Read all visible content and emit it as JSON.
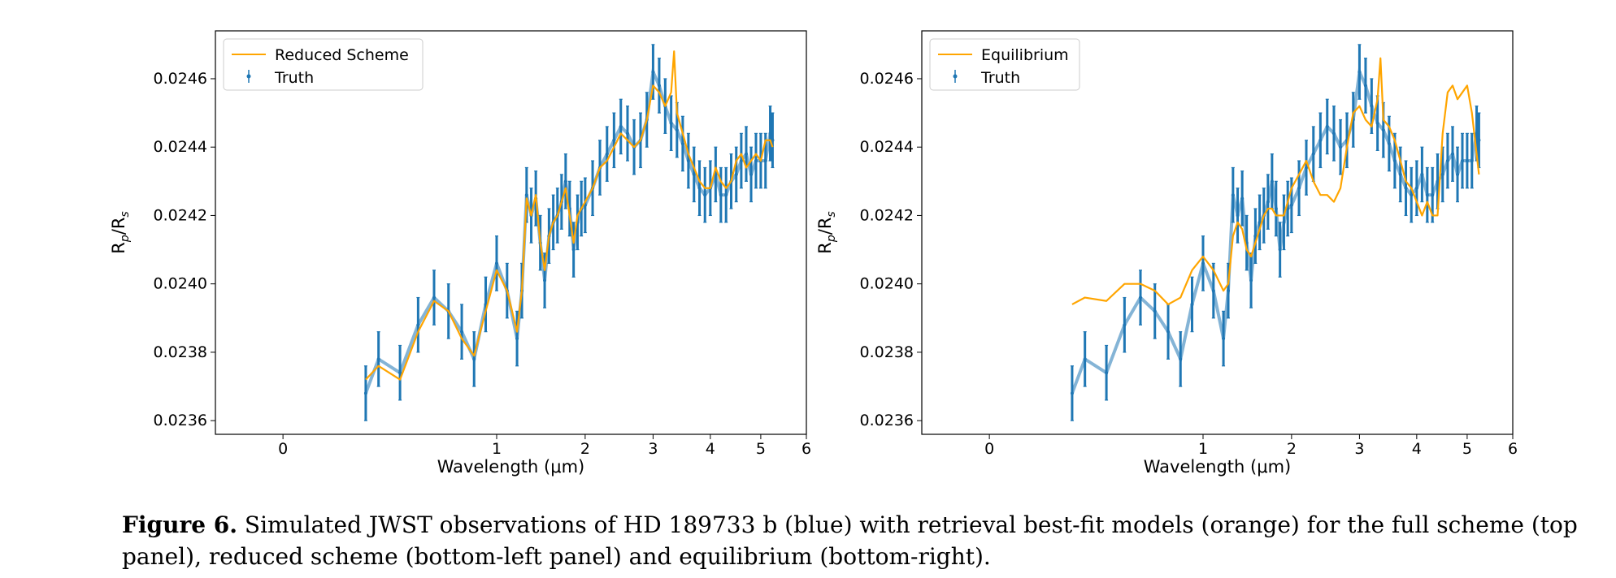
{
  "chart_data": [
    {
      "type": "line",
      "title": "",
      "xlabel": "Wavelength (μm)",
      "ylabel": "R_p/R_s",
      "xlim": [
        -0.1,
        6
      ],
      "ylim": [
        0.02356,
        0.02474
      ],
      "xticks": [
        0,
        1,
        2,
        3,
        4,
        5,
        6
      ],
      "yticks": [
        0.0236,
        0.0238,
        0.024,
        0.0242,
        0.0244,
        0.0246
      ],
      "xtick_labels": [
        "0",
        "1",
        "2",
        "3",
        "4",
        "5",
        "6"
      ],
      "ytick_labels": [
        "0.0236",
        "0.0238",
        "0.0240",
        "0.0242",
        "0.0244",
        "0.0246"
      ],
      "x_scale": "sqrt",
      "grid": false,
      "legend": "top-left",
      "series": [
        {
          "name": "Truth",
          "kind": "errorbar",
          "color": "#1f77b4",
          "x": [
            0.15,
            0.2,
            0.3,
            0.4,
            0.5,
            0.6,
            0.7,
            0.8,
            0.9,
            1.0,
            1.1,
            1.2,
            1.25,
            1.3,
            1.35,
            1.4,
            1.45,
            1.5,
            1.55,
            1.6,
            1.65,
            1.7,
            1.75,
            1.8,
            1.85,
            1.9,
            1.95,
            2.0,
            2.1,
            2.2,
            2.3,
            2.4,
            2.5,
            2.6,
            2.7,
            2.8,
            2.9,
            3.0,
            3.1,
            3.2,
            3.3,
            3.4,
            3.5,
            3.6,
            3.7,
            3.8,
            3.9,
            4.0,
            4.1,
            4.2,
            4.3,
            4.4,
            4.5,
            4.6,
            4.7,
            4.8,
            4.9,
            5.0,
            5.1,
            5.2,
            5.25
          ],
          "y": [
            0.02368,
            0.02378,
            0.02374,
            0.02388,
            0.02396,
            0.02392,
            0.02386,
            0.02378,
            0.02394,
            0.02406,
            0.02398,
            0.02384,
            0.02398,
            0.02426,
            0.0242,
            0.02425,
            0.02412,
            0.02401,
            0.02414,
            0.02418,
            0.0242,
            0.02424,
            0.0243,
            0.02422,
            0.0241,
            0.02418,
            0.02422,
            0.02423,
            0.02428,
            0.02434,
            0.02438,
            0.02442,
            0.02446,
            0.02444,
            0.0244,
            0.02442,
            0.02448,
            0.02462,
            0.02458,
            0.02452,
            0.02447,
            0.02445,
            0.02441,
            0.02436,
            0.02432,
            0.02428,
            0.02426,
            0.02428,
            0.02432,
            0.02426,
            0.02426,
            0.0243,
            0.02432,
            0.02436,
            0.02438,
            0.02432,
            0.02436,
            0.02436,
            0.02436,
            0.02444,
            0.02442
          ],
          "error": 8e-05
        },
        {
          "name": "Reduced Scheme",
          "kind": "line",
          "color": "#ffa500",
          "x": [
            0.15,
            0.2,
            0.3,
            0.4,
            0.5,
            0.6,
            0.7,
            0.8,
            0.9,
            1.0,
            1.1,
            1.2,
            1.25,
            1.3,
            1.35,
            1.4,
            1.45,
            1.5,
            1.55,
            1.6,
            1.65,
            1.7,
            1.75,
            1.8,
            1.85,
            1.9,
            1.95,
            2.0,
            2.1,
            2.2,
            2.3,
            2.4,
            2.5,
            2.6,
            2.7,
            2.8,
            2.9,
            3.0,
            3.1,
            3.2,
            3.3,
            3.35,
            3.4,
            3.5,
            3.6,
            3.7,
            3.8,
            3.9,
            4.0,
            4.1,
            4.2,
            4.3,
            4.4,
            4.5,
            4.6,
            4.7,
            4.8,
            4.9,
            5.0,
            5.1,
            5.2,
            5.25
          ],
          "y": [
            0.02372,
            0.02376,
            0.02372,
            0.02386,
            0.02395,
            0.02392,
            0.02384,
            0.02379,
            0.02392,
            0.02404,
            0.02398,
            0.02386,
            0.02398,
            0.02425,
            0.0242,
            0.02426,
            0.02412,
            0.02404,
            0.02414,
            0.02418,
            0.0242,
            0.02424,
            0.02428,
            0.0242,
            0.02412,
            0.0242,
            0.02422,
            0.02424,
            0.02428,
            0.02434,
            0.02436,
            0.0244,
            0.02444,
            0.02442,
            0.0244,
            0.02442,
            0.02448,
            0.02458,
            0.02456,
            0.02452,
            0.02456,
            0.02468,
            0.0245,
            0.02444,
            0.02438,
            0.02434,
            0.0243,
            0.02428,
            0.02428,
            0.02434,
            0.0243,
            0.02428,
            0.0243,
            0.02436,
            0.02438,
            0.02434,
            0.02436,
            0.02438,
            0.02436,
            0.02442,
            0.02442,
            0.0244
          ]
        }
      ]
    },
    {
      "type": "line",
      "title": "",
      "xlabel": "Wavelength (μm)",
      "ylabel": "R_p/R_s",
      "xlim": [
        -0.1,
        6
      ],
      "ylim": [
        0.02356,
        0.02474
      ],
      "xticks": [
        0,
        1,
        2,
        3,
        4,
        5,
        6
      ],
      "yticks": [
        0.0236,
        0.0238,
        0.024,
        0.0242,
        0.0244,
        0.0246
      ],
      "xtick_labels": [
        "0",
        "1",
        "2",
        "3",
        "4",
        "5",
        "6"
      ],
      "ytick_labels": [
        "0.0236",
        "0.0238",
        "0.0240",
        "0.0242",
        "0.0244",
        "0.0246"
      ],
      "x_scale": "sqrt",
      "grid": false,
      "legend": "top-left",
      "series": [
        {
          "name": "Truth",
          "kind": "errorbar",
          "color": "#1f77b4",
          "x": [
            0.15,
            0.2,
            0.3,
            0.4,
            0.5,
            0.6,
            0.7,
            0.8,
            0.9,
            1.0,
            1.1,
            1.2,
            1.25,
            1.3,
            1.35,
            1.4,
            1.45,
            1.5,
            1.55,
            1.6,
            1.65,
            1.7,
            1.75,
            1.8,
            1.85,
            1.9,
            1.95,
            2.0,
            2.1,
            2.2,
            2.3,
            2.4,
            2.5,
            2.6,
            2.7,
            2.8,
            2.9,
            3.0,
            3.1,
            3.2,
            3.3,
            3.4,
            3.5,
            3.6,
            3.7,
            3.8,
            3.9,
            4.0,
            4.1,
            4.2,
            4.3,
            4.4,
            4.5,
            4.6,
            4.7,
            4.8,
            4.9,
            5.0,
            5.1,
            5.2,
            5.25
          ],
          "y": [
            0.02368,
            0.02378,
            0.02374,
            0.02388,
            0.02396,
            0.02392,
            0.02386,
            0.02378,
            0.02394,
            0.02406,
            0.02398,
            0.02384,
            0.02398,
            0.02426,
            0.0242,
            0.02425,
            0.02412,
            0.02401,
            0.02414,
            0.02418,
            0.0242,
            0.02424,
            0.0243,
            0.02422,
            0.0241,
            0.02418,
            0.02422,
            0.02423,
            0.02428,
            0.02434,
            0.02438,
            0.02442,
            0.02446,
            0.02444,
            0.0244,
            0.02442,
            0.02448,
            0.02462,
            0.02458,
            0.02452,
            0.02447,
            0.02445,
            0.02441,
            0.02436,
            0.02432,
            0.02428,
            0.02426,
            0.02428,
            0.02432,
            0.02426,
            0.02426,
            0.0243,
            0.02432,
            0.02436,
            0.02438,
            0.02432,
            0.02436,
            0.02436,
            0.02436,
            0.02444,
            0.02442
          ],
          "error": 8e-05
        },
        {
          "name": "Equilibrium",
          "kind": "line",
          "color": "#ffa500",
          "x": [
            0.15,
            0.2,
            0.3,
            0.4,
            0.5,
            0.6,
            0.7,
            0.8,
            0.9,
            1.0,
            1.1,
            1.2,
            1.25,
            1.3,
            1.35,
            1.4,
            1.45,
            1.5,
            1.55,
            1.6,
            1.65,
            1.7,
            1.75,
            1.8,
            1.85,
            1.9,
            1.95,
            2.0,
            2.1,
            2.2,
            2.3,
            2.4,
            2.5,
            2.6,
            2.7,
            2.8,
            2.9,
            3.0,
            3.1,
            3.2,
            3.3,
            3.35,
            3.4,
            3.5,
            3.6,
            3.7,
            3.8,
            3.9,
            4.0,
            4.1,
            4.2,
            4.3,
            4.4,
            4.5,
            4.6,
            4.7,
            4.8,
            4.9,
            5.0,
            5.1,
            5.2,
            5.25
          ],
          "y": [
            0.02394,
            0.02396,
            0.02395,
            0.024,
            0.024,
            0.02398,
            0.02394,
            0.02396,
            0.02404,
            0.02408,
            0.02404,
            0.02398,
            0.024,
            0.02414,
            0.02418,
            0.02416,
            0.0241,
            0.02408,
            0.02412,
            0.02416,
            0.0242,
            0.02422,
            0.02422,
            0.0242,
            0.0242,
            0.0242,
            0.02424,
            0.02428,
            0.02432,
            0.02436,
            0.0243,
            0.02426,
            0.02426,
            0.02424,
            0.02428,
            0.0244,
            0.0245,
            0.02452,
            0.02448,
            0.02446,
            0.02454,
            0.02466,
            0.02448,
            0.02446,
            0.02442,
            0.02436,
            0.0243,
            0.02428,
            0.02424,
            0.0242,
            0.02424,
            0.0242,
            0.0242,
            0.02444,
            0.02456,
            0.02458,
            0.02454,
            0.02456,
            0.02458,
            0.0245,
            0.02438,
            0.02432
          ]
        }
      ]
    }
  ],
  "caption": {
    "label": "Figure 6.",
    "text": " Simulated JWST observations of HD 189733 b (blue) with retrieval best-fit models (orange) for the full scheme (top panel), reduced scheme (bottom-left panel) and equilibrium (bottom-right)."
  }
}
